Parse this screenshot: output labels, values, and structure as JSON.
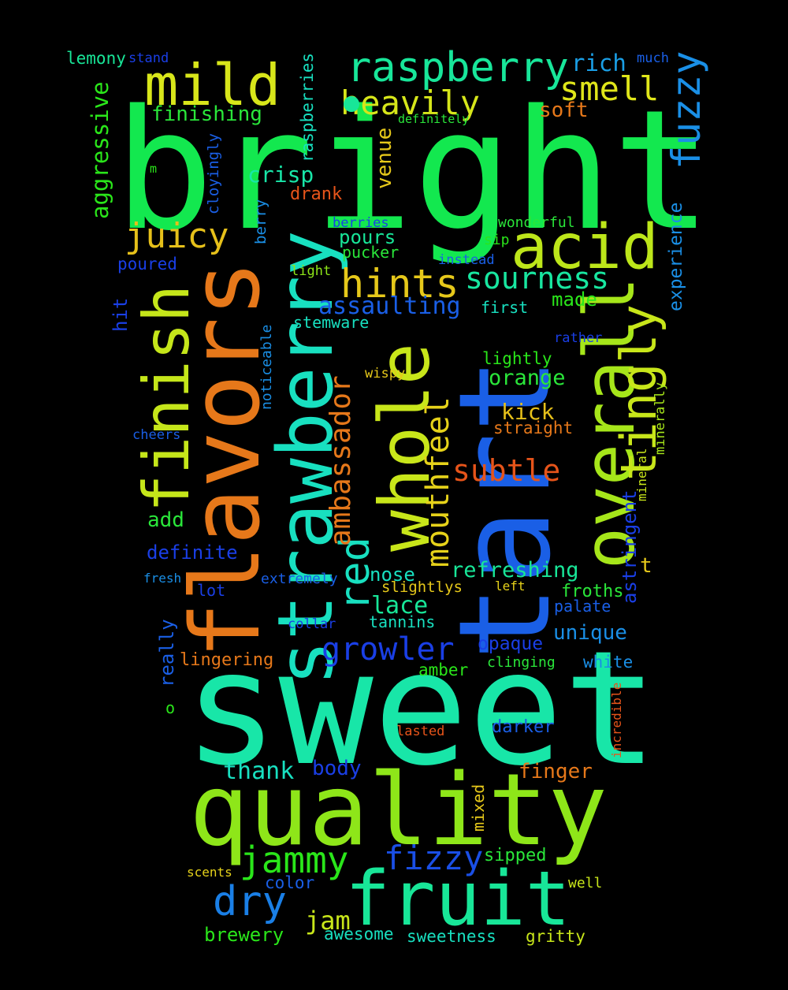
{
  "words": [
    {
      "text": "bright",
      "color": "#13e84f"
    },
    {
      "text": "sweet",
      "color": "#18e6a8"
    },
    {
      "text": "tart",
      "color": "#1a5fe6"
    },
    {
      "text": "quality",
      "color": "#8ee619"
    },
    {
      "text": "flavors",
      "color": "#e6781a"
    },
    {
      "text": "strawberry",
      "color": "#18e0c0"
    },
    {
      "text": "whole",
      "color": "#c8e61a"
    },
    {
      "text": "overall",
      "color": "#a6e61a"
    },
    {
      "text": "fruit",
      "color": "#18e698"
    },
    {
      "text": "finish",
      "color": "#c5e61a"
    },
    {
      "text": "mild",
      "color": "#d8e61a"
    },
    {
      "text": "acid",
      "color": "#bde61a"
    },
    {
      "text": "raspberry",
      "color": "#18e69a"
    },
    {
      "text": "tingly",
      "color": "#c8e61a"
    },
    {
      "text": "heavily",
      "color": "#d6e61a"
    },
    {
      "text": "smell",
      "color": "#e0e61a"
    },
    {
      "text": "fuzzy",
      "color": "#1a8fe6"
    },
    {
      "text": "hints",
      "color": "#e6c81a"
    },
    {
      "text": "juicy",
      "color": "#e6c01a"
    },
    {
      "text": "sourness",
      "color": "#18e6a0"
    },
    {
      "text": "red",
      "color": "#18e0c0"
    },
    {
      "text": "ambassador",
      "color": "#e6781a"
    },
    {
      "text": "mouthfeel",
      "color": "#e6d21a"
    },
    {
      "text": "jammy",
      "color": "#2ae61a"
    },
    {
      "text": "dry",
      "color": "#1a7fe6"
    },
    {
      "text": "fizzy",
      "color": "#1a4fe6"
    },
    {
      "text": "growler",
      "color": "#1a3fe6"
    },
    {
      "text": "subtle",
      "color": "#e6541a"
    },
    {
      "text": "assaulting",
      "color": "#1a5fe6"
    },
    {
      "text": "rich",
      "color": "#1a9fe6"
    },
    {
      "text": "soft",
      "color": "#e6781a"
    },
    {
      "text": "finishing",
      "color": "#2ae63a"
    },
    {
      "text": "lemony",
      "color": "#18e698"
    },
    {
      "text": "stand",
      "color": "#1a3fe6"
    },
    {
      "text": "much",
      "color": "#1a5fe6"
    },
    {
      "text": "definitely",
      "color": "#2ae63a"
    },
    {
      "text": "aggressive",
      "color": "#2ae61a"
    },
    {
      "text": "raspberries",
      "color": "#18e0c0"
    },
    {
      "text": "cloyingly",
      "color": "#1a5fe6"
    },
    {
      "text": "m",
      "color": "#2ae61a"
    },
    {
      "text": "crisp",
      "color": "#18e6a8"
    },
    {
      "text": "venue",
      "color": "#e6c81a"
    },
    {
      "text": "drank",
      "color": "#e6541a"
    },
    {
      "text": "experience",
      "color": "#1a8fe6"
    },
    {
      "text": "berries",
      "color": "#1a3fe6"
    },
    {
      "text": "berry",
      "color": "#1a8fe6"
    },
    {
      "text": "wonderful",
      "color": "#2ae63a"
    },
    {
      "text": "pours",
      "color": "#18e698"
    },
    {
      "text": "sip",
      "color": "#2ae61a"
    },
    {
      "text": "pucker",
      "color": "#2ae63a"
    },
    {
      "text": "instead",
      "color": "#1a5fe6"
    },
    {
      "text": "poured",
      "color": "#1a3fe6"
    },
    {
      "text": "light",
      "color": "#8ee619"
    },
    {
      "text": "made",
      "color": "#2ae61a"
    },
    {
      "text": "first",
      "color": "#18e0c0"
    },
    {
      "text": "hit",
      "color": "#1a3fe6"
    },
    {
      "text": "stemware",
      "color": "#18e0c0"
    },
    {
      "text": "noticeable",
      "color": "#1a8fe6"
    },
    {
      "text": "rather",
      "color": "#1a3fe6"
    },
    {
      "text": "lightly",
      "color": "#2ae61a"
    },
    {
      "text": "wispy",
      "color": "#e6c81a"
    },
    {
      "text": "orange",
      "color": "#2ae63a"
    },
    {
      "text": "minerally",
      "color": "#a6e61a"
    },
    {
      "text": "kick",
      "color": "#e6c01a"
    },
    {
      "text": "straight",
      "color": "#e6781a"
    },
    {
      "text": "cheers",
      "color": "#1a5fe6"
    },
    {
      "text": "mineral",
      "color": "#c8e61a"
    },
    {
      "text": "add",
      "color": "#2ae63a"
    },
    {
      "text": "astringent",
      "color": "#1a3fe6"
    },
    {
      "text": "definite",
      "color": "#1a3fe6"
    },
    {
      "text": "t",
      "color": "#e6c81a"
    },
    {
      "text": "refreshing",
      "color": "#18e698"
    },
    {
      "text": "nose",
      "color": "#18e0c0"
    },
    {
      "text": "fresh",
      "color": "#1a8fe6"
    },
    {
      "text": "extremely",
      "color": "#1a5fe6"
    },
    {
      "text": "lot",
      "color": "#1a3fe6"
    },
    {
      "text": "slightlys",
      "color": "#e6c81a"
    },
    {
      "text": "left",
      "color": "#e6d21a"
    },
    {
      "text": "froths",
      "color": "#2ae63a"
    },
    {
      "text": "lace",
      "color": "#18e698"
    },
    {
      "text": "palate",
      "color": "#1a5fe6"
    },
    {
      "text": "collar",
      "color": "#1a3fe6"
    },
    {
      "text": "tannins",
      "color": "#18e0c0"
    },
    {
      "text": "unique",
      "color": "#1a8fe6"
    },
    {
      "text": "really",
      "color": "#1a5fe6"
    },
    {
      "text": "opaque",
      "color": "#1a3fe6"
    },
    {
      "text": "lingering",
      "color": "#e6781a"
    },
    {
      "text": "clinging",
      "color": "#2ae63a"
    },
    {
      "text": "white",
      "color": "#1a8fe6"
    },
    {
      "text": "amber",
      "color": "#2ae61a"
    },
    {
      "text": "incredible",
      "color": "#e6541a"
    },
    {
      "text": "o",
      "color": "#2ae61a"
    },
    {
      "text": "lasted",
      "color": "#e6541a"
    },
    {
      "text": "darker",
      "color": "#1a5fe6"
    },
    {
      "text": "thank",
      "color": "#18e0c0"
    },
    {
      "text": "body",
      "color": "#1a3fe6"
    },
    {
      "text": "finger",
      "color": "#e6781a"
    },
    {
      "text": "mixed",
      "color": "#e6c81a"
    },
    {
      "text": "sipped",
      "color": "#2ae63a"
    },
    {
      "text": "scents",
      "color": "#e6d21a"
    },
    {
      "text": "color",
      "color": "#1a5fe6"
    },
    {
      "text": "well",
      "color": "#c8e61a"
    },
    {
      "text": "jam",
      "color": "#c8e61a"
    },
    {
      "text": "brewery",
      "color": "#2ae61a"
    },
    {
      "text": "awesome",
      "color": "#18e0c0"
    },
    {
      "text": "sweetness",
      "color": "#18e0c0"
    },
    {
      "text": "gritty",
      "color": "#c8e61a"
    }
  ]
}
